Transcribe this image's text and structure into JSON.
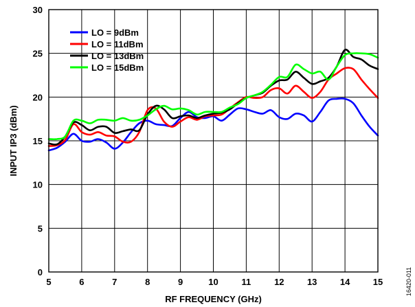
{
  "figure_id": "16420-011",
  "chart_data": {
    "type": "line",
    "title": "",
    "xlabel": "RF FREQUENCY (GHz)",
    "ylabel": "INPUT IP3 (dBm)",
    "xlim": [
      5,
      15
    ],
    "ylim": [
      0,
      30
    ],
    "x_ticks": [
      5,
      6,
      7,
      8,
      9,
      10,
      11,
      12,
      13,
      14,
      15
    ],
    "y_ticks": [
      0,
      5,
      10,
      15,
      20,
      25,
      30
    ],
    "grid": true,
    "legend_position": "top-left",
    "x": [
      5.0,
      5.25,
      5.5,
      5.75,
      6.0,
      6.25,
      6.5,
      6.75,
      7.0,
      7.25,
      7.5,
      7.75,
      8.0,
      8.25,
      8.5,
      8.75,
      9.0,
      9.25,
      9.5,
      9.75,
      10.0,
      10.25,
      10.5,
      10.75,
      11.0,
      11.25,
      11.5,
      11.75,
      12.0,
      12.25,
      12.5,
      12.75,
      13.0,
      13.25,
      13.5,
      13.75,
      14.0,
      14.25,
      14.5,
      14.75,
      15.0
    ],
    "series": [
      {
        "name": "LO = 9dBm",
        "color": "#0000ff",
        "values": [
          13.9,
          14.2,
          14.9,
          15.8,
          15.0,
          14.9,
          15.2,
          14.8,
          14.1,
          14.8,
          16.0,
          17.0,
          17.3,
          16.9,
          16.8,
          16.7,
          17.6,
          18.3,
          17.7,
          17.6,
          17.8,
          17.3,
          18.0,
          18.7,
          18.6,
          18.3,
          18.1,
          18.5,
          17.7,
          17.5,
          18.1,
          17.9,
          17.2,
          18.3,
          19.6,
          19.8,
          19.8,
          19.3,
          17.9,
          16.6,
          15.6
        ]
      },
      {
        "name": "LO = 11dBm",
        "color": "#ff0000",
        "values": [
          14.4,
          14.5,
          15.1,
          16.9,
          16.0,
          15.7,
          16.0,
          15.6,
          15.5,
          14.9,
          14.9,
          16.0,
          18.5,
          18.7,
          17.2,
          16.6,
          17.2,
          17.7,
          17.4,
          17.8,
          17.9,
          18.0,
          18.7,
          19.4,
          20.0,
          19.9,
          20.0,
          20.8,
          21.0,
          20.4,
          21.3,
          20.6,
          19.9,
          20.6,
          22.0,
          22.7,
          23.3,
          23.2,
          22.0,
          20.9,
          19.9
        ]
      },
      {
        "name": "LO = 13dBm",
        "color": "#000000",
        "values": [
          14.7,
          14.6,
          15.5,
          17.1,
          16.8,
          16.2,
          16.6,
          16.6,
          15.9,
          16.1,
          16.3,
          16.2,
          18.0,
          19.0,
          18.6,
          17.6,
          17.8,
          17.9,
          17.6,
          17.9,
          18.1,
          18.2,
          18.6,
          19.3,
          19.9,
          20.2,
          20.5,
          21.3,
          21.9,
          22.0,
          22.9,
          22.2,
          21.5,
          21.8,
          22.2,
          23.5,
          25.4,
          24.6,
          24.3,
          23.6,
          23.2
        ]
      },
      {
        "name": "LO = 15dBm",
        "color": "#00ff00",
        "values": [
          15.2,
          15.2,
          15.5,
          17.3,
          17.3,
          17.0,
          17.4,
          17.4,
          17.3,
          17.6,
          17.3,
          17.4,
          17.9,
          18.6,
          19.0,
          18.6,
          18.7,
          18.5,
          18.0,
          18.3,
          18.3,
          18.3,
          18.8,
          19.2,
          19.9,
          20.2,
          20.6,
          21.4,
          22.3,
          22.3,
          23.7,
          23.2,
          22.7,
          22.9,
          22.0,
          23.5,
          24.8,
          25.0,
          25.0,
          24.9,
          24.5
        ]
      }
    ]
  }
}
